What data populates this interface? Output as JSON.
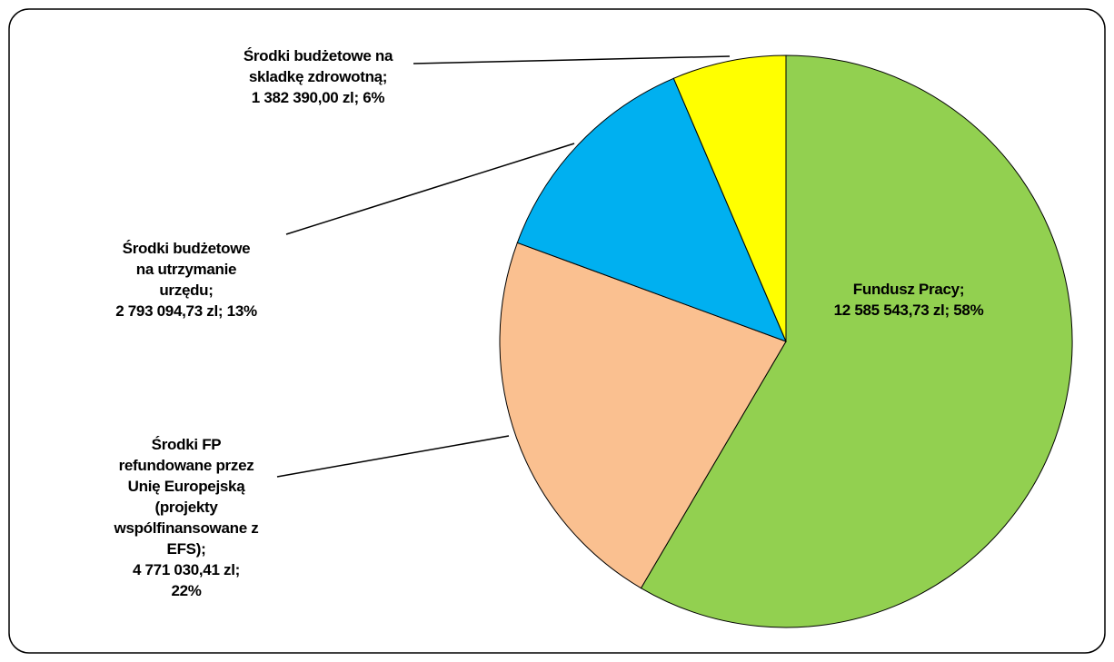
{
  "chart_data": {
    "type": "pie",
    "categories": [
      "Fundusz Pracy;",
      "Środki FP refundowane przez Unię Europejską (projekty wspólfinansowane z EFS);",
      "Środki budżetowe na utrzymanie urzędu;",
      "Środki budżetowe na skladkę zdrowotną;"
    ],
    "values": [
      12585543.73,
      4771030.41,
      2793094.73,
      1382390.0
    ],
    "value_labels": [
      "12 585 543,73 zl; 58%",
      "4 771 030,41 zl; 22%",
      "2 793 094,73 zl; 13%",
      "1 382 390,00 zl; 6%"
    ],
    "colors": [
      "#92d050",
      "#fac090",
      "#00b0f0",
      "#ffff00"
    ]
  }
}
